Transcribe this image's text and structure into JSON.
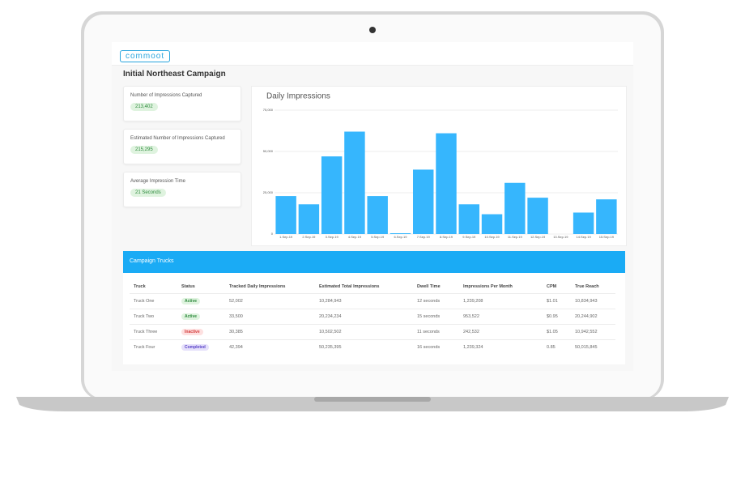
{
  "header": {
    "logo": "commoot",
    "title": "Initial Northeast Campaign"
  },
  "cards": [
    {
      "label": "Number of Impressions Captured",
      "value": "213,402"
    },
    {
      "label": "Estimated Number of Impressions Captured",
      "value": "215,295"
    },
    {
      "label": "Average Impression Time",
      "value": "21 Seconds"
    }
  ],
  "chart_data": {
    "type": "bar",
    "title": "Daily Impressions",
    "categories": [
      "1.Sep.19",
      "2.Sep.19",
      "3.Sep.19",
      "4.Sep.19",
      "5.Sep.19",
      "6.Sep.19",
      "7.Sep.19",
      "8.Sep.19",
      "9.Sep.19",
      "10.Sep.19",
      "11.Sep.19",
      "12.Sep.19",
      "13.Sep.19",
      "14.Sep.19",
      "15.Sep.19"
    ],
    "values": [
      23000,
      18000,
      47000,
      62000,
      23000,
      500,
      39000,
      61000,
      18000,
      12000,
      31000,
      22000,
      0,
      13000,
      21000
    ],
    "color": "#36b6fd",
    "ylim": [
      0,
      75000
    ],
    "yticks": [
      0,
      {
        "value": 25000,
        "label": "25,000"
      },
      {
        "value": 50000,
        "label": "50,000"
      },
      {
        "value": 75000,
        "label": "75,000"
      }
    ],
    "grid": true
  },
  "table": {
    "title": "Campaign Trucks",
    "columns": [
      "Truck",
      "Status",
      "Tracked Daily Impressions",
      "Estimated Total Impressions",
      "Dwell Time",
      "Impressions Per Month",
      "CPM",
      "True Reach"
    ],
    "rows": [
      [
        "Truck One",
        "Active",
        "52,002",
        "10,284,943",
        "12 seconds",
        "1,239,208",
        "$1.01",
        "10,834,943"
      ],
      [
        "Truck Two",
        "Active",
        "33,500",
        "20,234,234",
        "15 seconds",
        "953,522",
        "$0.95",
        "20,244,902"
      ],
      [
        "Truck Three",
        "Inactive",
        "30,385",
        "10,502,502",
        "11 seconds",
        "242,532",
        "$1.05",
        "10,942,552"
      ],
      [
        "Truck Four",
        "Completed",
        "42,394",
        "50,235,395",
        "16 seconds",
        "1,239,324",
        "0.85",
        "50,015,845"
      ]
    ]
  }
}
